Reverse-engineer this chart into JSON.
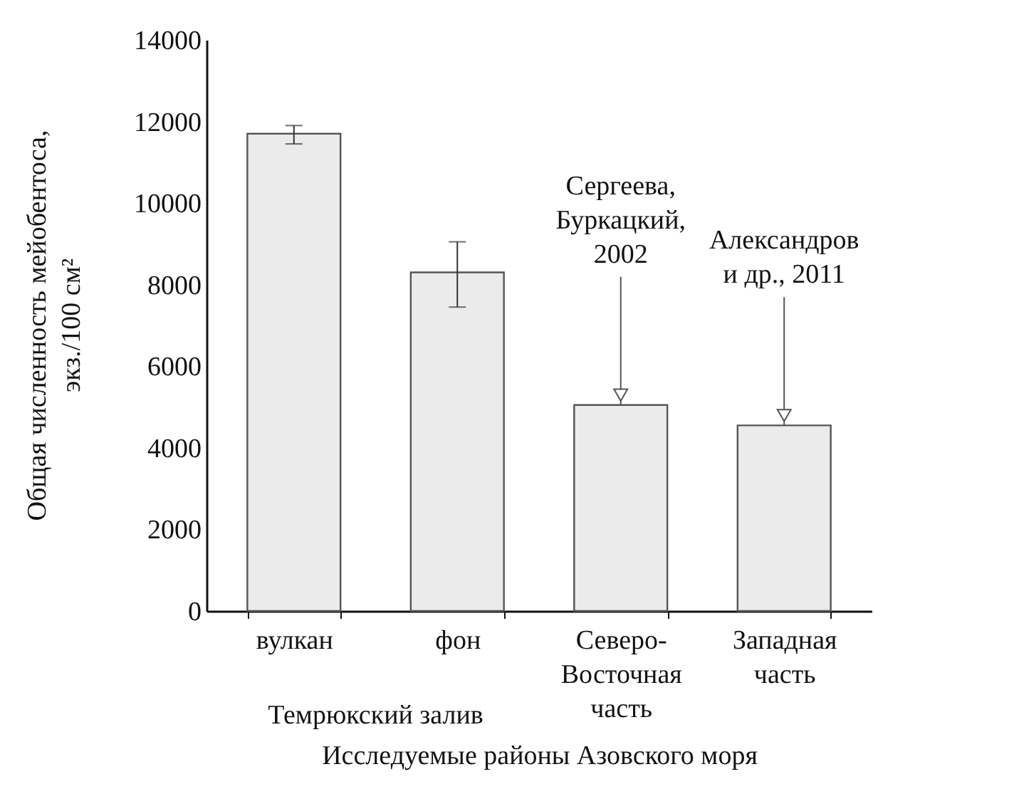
{
  "chart_data": {
    "type": "bar",
    "xlabel": "Исследуемые районы Азовского моря",
    "ylabel": "Общая численность мейобентоса,\nэкз./100 см²",
    "categories": [
      "вулкан",
      "фон",
      "Северо-Восточная часть",
      "Западная часть"
    ],
    "values": [
      11700,
      8300,
      5050,
      4550
    ],
    "errors": [
      [
        11450,
        11900
      ],
      [
        7450,
        9050
      ],
      null,
      null
    ],
    "color": "#ebebeb",
    "ylim": [
      0,
      14000
    ],
    "yticks": [
      0,
      2000,
      4000,
      6000,
      8000,
      10000,
      12000,
      14000
    ],
    "annotations": [
      {
        "text": "Сергеева,\nБуркацкий,\n2002",
        "x": "Северо-Восточная часть",
        "y": 5050
      },
      {
        "text": "Александров\nи др., 2011",
        "x": "Западная часть",
        "y": 4550
      },
      "Темрюкский залив"
    ]
  }
}
